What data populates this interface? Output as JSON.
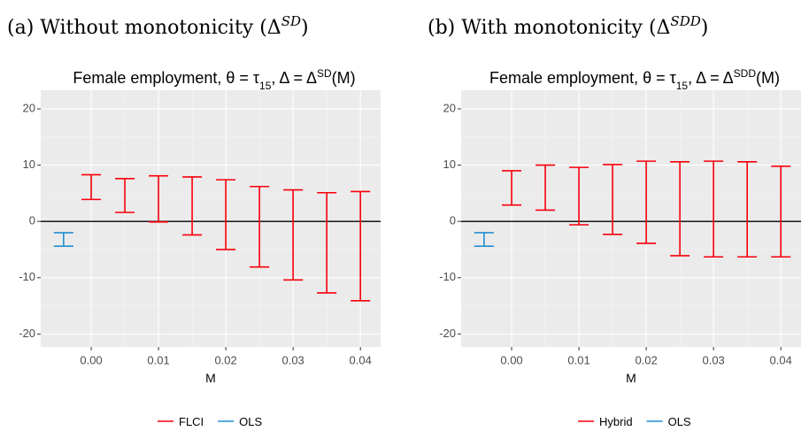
{
  "chart_data": [
    {
      "type": "errorbar",
      "caption": [
        "(a) Without monotonicity (Δ",
        "SD",
        ")"
      ],
      "title": [
        "Female employment, θ = τ",
        "15",
        ", Δ = Δ",
        "SD",
        "(M)"
      ],
      "xlabel": "M",
      "xlim": [
        -0.0075,
        0.043
      ],
      "ylim": [
        -22.3,
        23.3
      ],
      "xticks": [
        {
          "value": 0,
          "label": "0.00"
        },
        0.01,
        0.02,
        0.03,
        0.04
      ],
      "yticks": [
        -20,
        -10,
        0,
        10,
        20
      ],
      "hline": 0,
      "grid": true,
      "legend": "bottom",
      "series": [
        {
          "name": "FLCI",
          "color": "#f8000a",
          "x": [
            0,
            0.005,
            0.01,
            0.015,
            0.02,
            0.025,
            0.03,
            0.035,
            0.04
          ],
          "lower": [
            3.9,
            1.6,
            -0.1,
            -2.4,
            -5.0,
            -8.1,
            -10.4,
            -12.7,
            -14.1
          ],
          "upper": [
            8.3,
            7.6,
            8.1,
            7.9,
            7.4,
            6.2,
            5.6,
            5.1,
            5.3
          ]
        },
        {
          "name": "OLS",
          "color": "#1f8fd0",
          "x": [
            -0.0041
          ],
          "lower": [
            -4.4
          ],
          "upper": [
            -2.0
          ]
        }
      ]
    },
    {
      "type": "errorbar",
      "caption": [
        "(b) With monotonicity (Δ",
        "SDD",
        ")"
      ],
      "title": [
        "Female employment, θ = τ",
        "15",
        ", Δ = Δ",
        "SDD",
        "(M)"
      ],
      "xlabel": "M",
      "xlim": [
        -0.0075,
        0.043
      ],
      "ylim": [
        -22.3,
        23.3
      ],
      "xticks": [
        {
          "value": 0,
          "label": "0.00"
        },
        0.01,
        0.02,
        0.03,
        0.04
      ],
      "yticks": [
        -20,
        -10,
        0,
        10,
        20
      ],
      "hline": 0,
      "grid": true,
      "legend": "bottom",
      "series": [
        {
          "name": "Hybrid",
          "color": "#f8000a",
          "x": [
            0,
            0.005,
            0.01,
            0.015,
            0.02,
            0.025,
            0.03,
            0.035,
            0.04
          ],
          "lower": [
            2.9,
            2.0,
            -0.6,
            -2.3,
            -3.9,
            -6.1,
            -6.3,
            -6.3,
            -6.3
          ],
          "upper": [
            9.0,
            10.0,
            9.6,
            10.1,
            10.7,
            10.6,
            10.7,
            10.6,
            9.8
          ]
        },
        {
          "name": "OLS",
          "color": "#1f8fd0",
          "x": [
            -0.0041
          ],
          "lower": [
            -4.4
          ],
          "upper": [
            -2.0
          ]
        }
      ]
    }
  ]
}
